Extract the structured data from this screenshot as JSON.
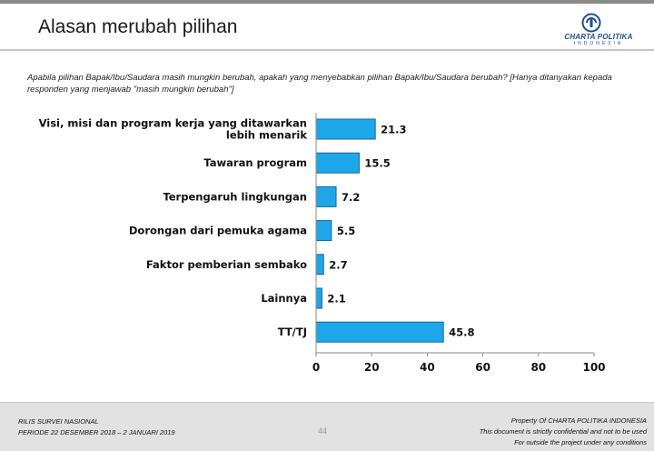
{
  "header": {
    "title": "Alasan merubah pilihan"
  },
  "logo": {
    "name": "CHARTA POLITIKA",
    "sub": "INDONESIA",
    "accent_color": "#1f4f93"
  },
  "question": "Apabila pilihan Bapak/Ibu/Saudara masih mungkin berubah, apakah yang menyebabkan pilihan Bapak/Ibu/Saudara berubah?  [Hanya ditanyakan kepada responden yang menjawab \"masih mungkin berubah\"]",
  "chart_data": {
    "type": "bar",
    "orientation": "horizontal",
    "categories": [
      "Visi, misi dan program kerja yang ditawarkan lebih menarik",
      "Tawaran program",
      "Terpengaruh lingkungan",
      "Dorongan dari pemuka agama",
      "Faktor pemberian sembako",
      "Lainnya",
      "TT/TJ"
    ],
    "values": [
      21.3,
      15.5,
      7.2,
      5.5,
      2.7,
      2.1,
      45.8
    ],
    "value_labels": [
      "21.3",
      "15.5",
      "7.2",
      "5.5",
      "2.7",
      "2.1",
      "45.8"
    ],
    "xlim": [
      0,
      100
    ],
    "xticks": [
      0,
      20,
      40,
      60,
      80,
      100
    ],
    "bar_color": "#1ea7e8",
    "bar_edge_color": "#12689a",
    "grid": false,
    "legend": "none"
  },
  "footer": {
    "left_line1": "RILIS SURVEI NASIONAL",
    "left_line2": "PERIODE  22 DESEMBER 2018 – 2 JANUARI 2019",
    "page_number": "44",
    "right_line1": "Property Of CHARTA POLITIKA INDONESIA",
    "right_line2": "This document is strictly confidential and not to be used",
    "right_line3": "For  outside the project under any conditions"
  }
}
